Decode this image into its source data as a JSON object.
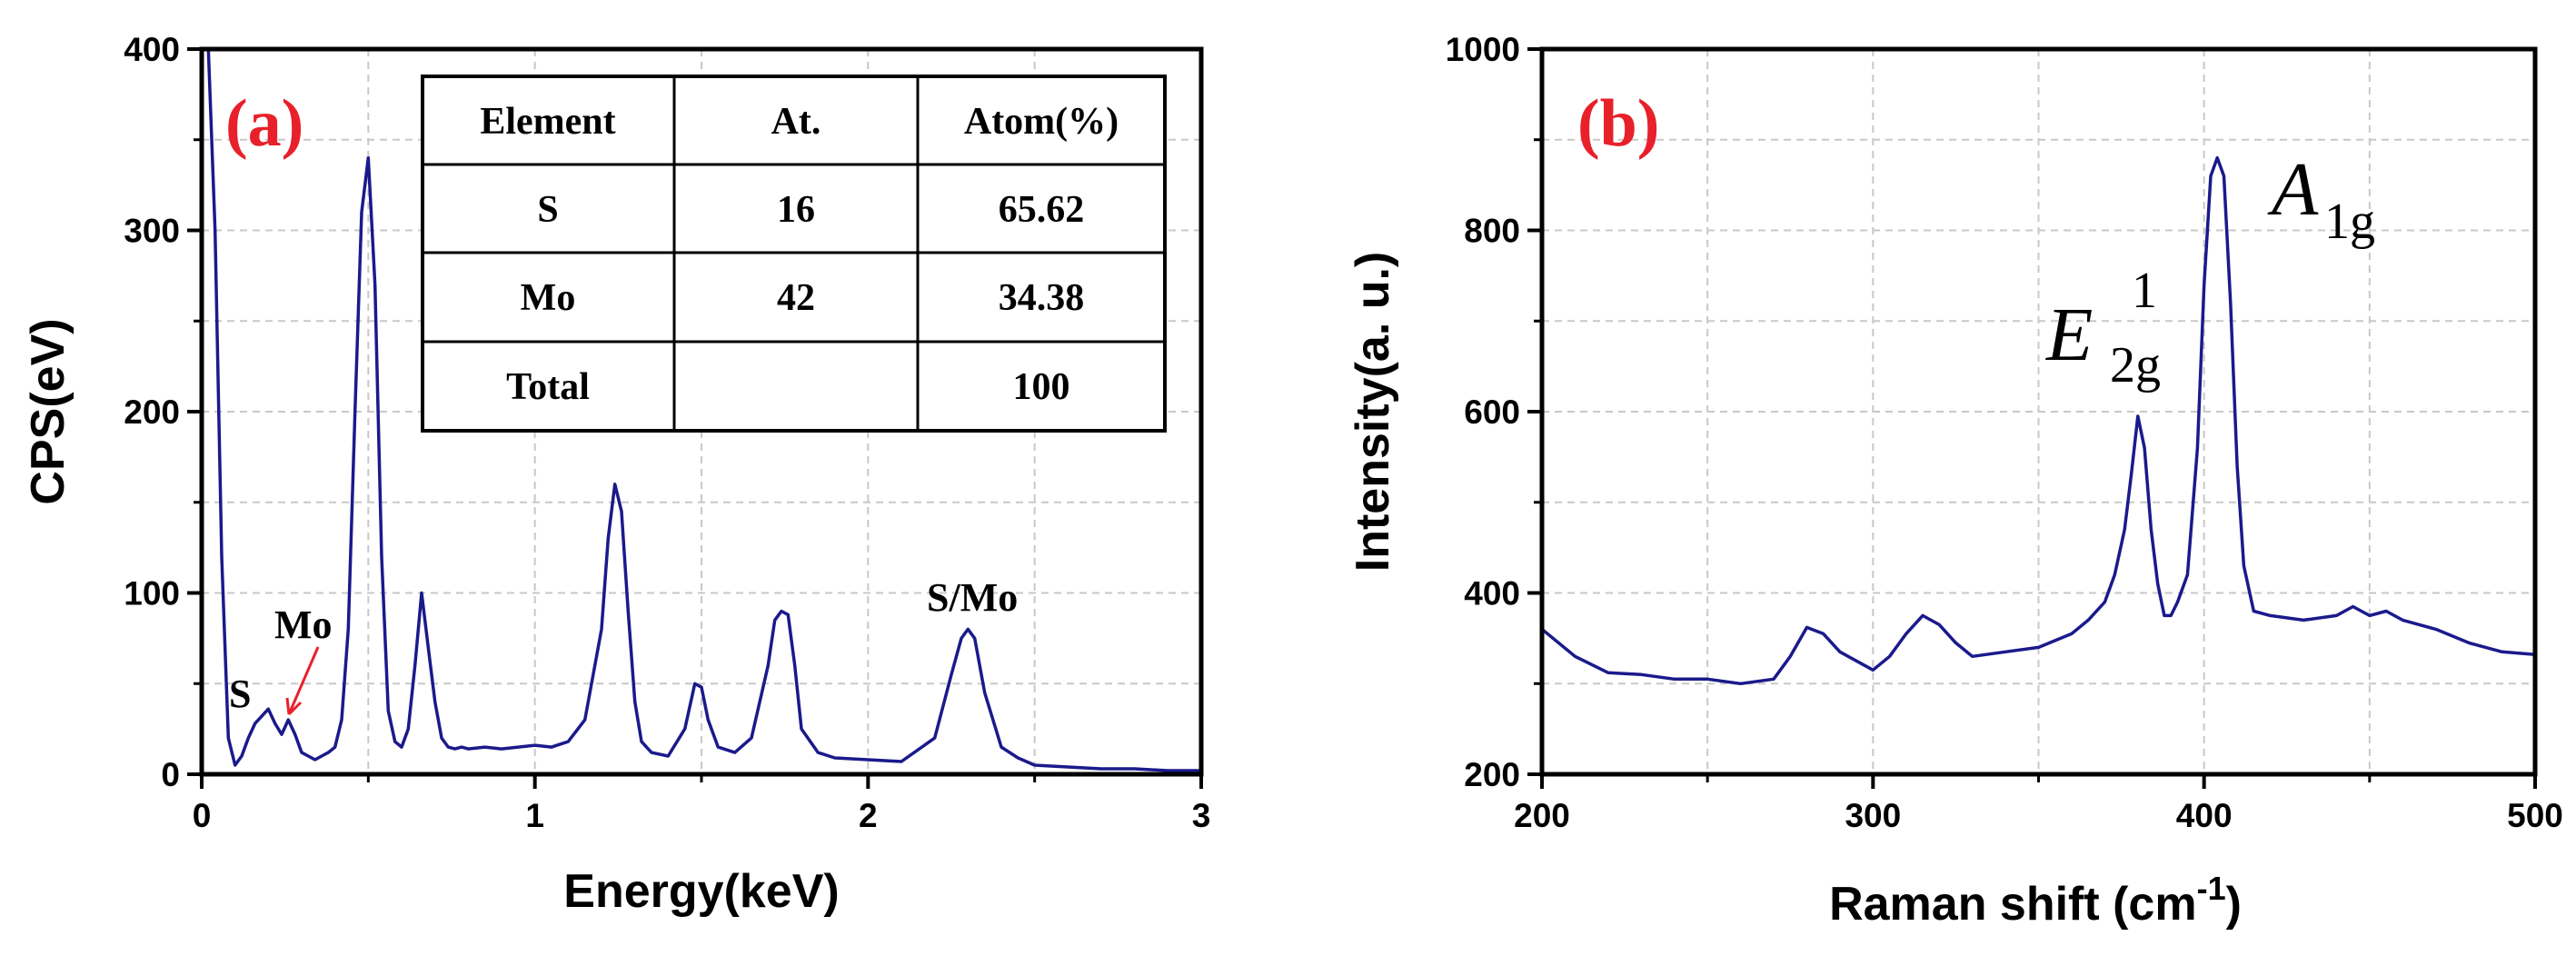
{
  "chart_data": [
    {
      "id": "a",
      "type": "line",
      "panel_label": "(a)",
      "xlabel": "Energy(keV)",
      "ylabel": "CPS(eV)",
      "xlim": [
        0,
        3
      ],
      "ylim": [
        0,
        400
      ],
      "xticks": [
        0,
        1,
        2,
        3
      ],
      "yticks": [
        0,
        100,
        200,
        300,
        400
      ],
      "grid": true,
      "line_color": "#1a1a8c",
      "series": [
        {
          "name": "EDS spectrum",
          "x": [
            0.0,
            0.02,
            0.04,
            0.06,
            0.08,
            0.1,
            0.12,
            0.14,
            0.16,
            0.18,
            0.2,
            0.22,
            0.24,
            0.26,
            0.28,
            0.3,
            0.32,
            0.34,
            0.36,
            0.38,
            0.4,
            0.42,
            0.44,
            0.46,
            0.48,
            0.5,
            0.52,
            0.54,
            0.56,
            0.58,
            0.6,
            0.62,
            0.64,
            0.66,
            0.68,
            0.7,
            0.72,
            0.74,
            0.76,
            0.78,
            0.8,
            0.85,
            0.9,
            0.95,
            1.0,
            1.05,
            1.1,
            1.15,
            1.2,
            1.22,
            1.24,
            1.26,
            1.28,
            1.3,
            1.32,
            1.35,
            1.4,
            1.45,
            1.48,
            1.5,
            1.52,
            1.55,
            1.6,
            1.65,
            1.7,
            1.72,
            1.74,
            1.76,
            1.78,
            1.8,
            1.85,
            1.9,
            2.0,
            2.1,
            2.2,
            2.25,
            2.28,
            2.3,
            2.32,
            2.35,
            2.4,
            2.45,
            2.5,
            2.6,
            2.7,
            2.8,
            2.9,
            3.0
          ],
          "y": [
            400,
            400,
            300,
            120,
            20,
            5,
            10,
            20,
            28,
            32,
            36,
            28,
            22,
            30,
            22,
            12,
            10,
            8,
            10,
            12,
            15,
            30,
            80,
            200,
            310,
            340,
            270,
            120,
            35,
            18,
            15,
            25,
            60,
            100,
            70,
            40,
            20,
            15,
            14,
            15,
            14,
            15,
            14,
            15,
            16,
            15,
            18,
            30,
            80,
            130,
            160,
            145,
            90,
            40,
            18,
            12,
            10,
            25,
            50,
            48,
            30,
            15,
            12,
            20,
            60,
            85,
            90,
            88,
            60,
            25,
            12,
            9,
            8,
            7,
            20,
            55,
            75,
            80,
            75,
            45,
            15,
            9,
            5,
            4,
            3,
            3,
            2,
            2
          ]
        }
      ],
      "annotations": [
        "S",
        "Mo",
        "S/Mo"
      ],
      "table": {
        "headers": [
          "Element",
          "At.",
          "Atom(%)"
        ],
        "rows": [
          [
            "S",
            "16",
            "65.62"
          ],
          [
            "Mo",
            "42",
            "34.38"
          ],
          [
            "Total",
            "",
            "100"
          ]
        ]
      }
    },
    {
      "id": "b",
      "type": "line",
      "panel_label": "(b)",
      "xlabel": "Raman shift (cm",
      "xlabel_sup": "-1",
      "xlabel_end": ")",
      "ylabel": "Intensity(a. u.)",
      "xlim": [
        200,
        500
      ],
      "ylim": [
        200,
        1000
      ],
      "xticks": [
        200,
        300,
        400,
        500
      ],
      "yticks": [
        200,
        400,
        600,
        800,
        1000
      ],
      "grid": true,
      "line_color": "#1a1a8c",
      "series": [
        {
          "name": "Raman spectrum",
          "x": [
            200,
            210,
            220,
            230,
            240,
            250,
            260,
            270,
            275,
            280,
            285,
            290,
            295,
            300,
            305,
            310,
            315,
            320,
            325,
            330,
            340,
            350,
            360,
            365,
            370,
            373,
            376,
            378,
            380,
            382,
            384,
            386,
            388,
            390,
            392,
            395,
            398,
            400,
            402,
            404,
            406,
            408,
            410,
            412,
            415,
            420,
            430,
            440,
            445,
            450,
            455,
            460,
            470,
            480,
            490,
            500
          ],
          "y": [
            360,
            330,
            312,
            310,
            305,
            305,
            300,
            305,
            330,
            362,
            355,
            335,
            325,
            315,
            330,
            355,
            375,
            365,
            345,
            330,
            335,
            340,
            355,
            370,
            390,
            420,
            470,
            530,
            595,
            560,
            470,
            410,
            375,
            375,
            390,
            420,
            560,
            740,
            860,
            880,
            860,
            720,
            540,
            430,
            380,
            375,
            370,
            375,
            385,
            375,
            380,
            370,
            360,
            345,
            335,
            332
          ]
        }
      ],
      "peak_labels": [
        {
          "main": "E",
          "sub": "2g",
          "sup": "1",
          "x": 380
        },
        {
          "main": "A",
          "sub": "1g",
          "x": 406
        }
      ]
    }
  ]
}
